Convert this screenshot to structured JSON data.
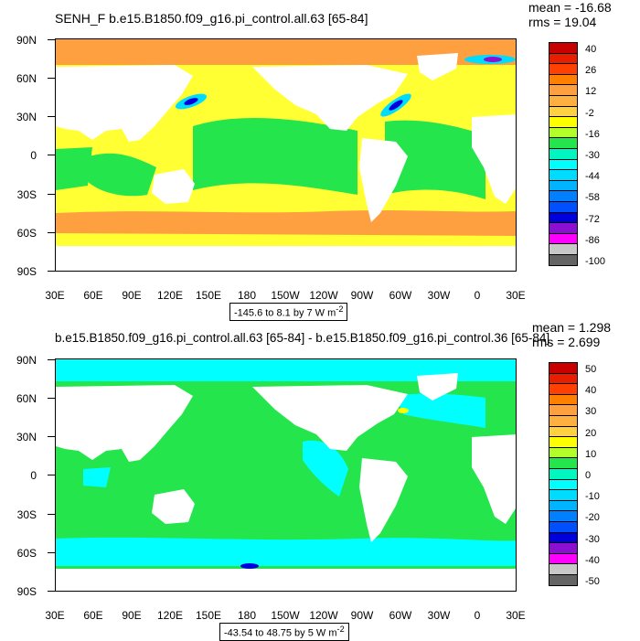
{
  "panels": [
    {
      "title": "SENH_F b.e15.B1850.f09_g16.pi_control.all.63 [65-84]",
      "mean_label": "mean = -16.68",
      "rms_label": "rms = 19.04",
      "range_label": "-145.6 to 8.1 by 7  W m",
      "range_exp": "-2",
      "lat_labels": [
        "90N",
        "60N",
        "30N",
        "0",
        "30S",
        "60S",
        "90S"
      ],
      "lon_labels": [
        "30E",
        "60E",
        "90E",
        "120E",
        "150E",
        "180",
        "150W",
        "120W",
        "90W",
        "60W",
        "30W",
        "0",
        "30E"
      ],
      "colorbar_labels": [
        "40",
        "26",
        "12",
        "-2",
        "-16",
        "-30",
        "-44",
        "-58",
        "-72",
        "-86",
        "-100"
      ],
      "colorbar_colors": [
        "#c80000",
        "#e81e00",
        "#ff4000",
        "#ff7f00",
        "#ffa040",
        "#ffb040",
        "#ffd040",
        "#ffff00",
        "#b2ff2a",
        "#24e64c",
        "#00f7c0",
        "#00ffff",
        "#00dcff",
        "#00b4ff",
        "#0080ff",
        "#0050ff",
        "#0000dc",
        "#8c10d2",
        "#ff00ff",
        "#c8c8c8",
        "#646464"
      ],
      "ocean_fill": "#ffff33"
    },
    {
      "title": "b.e15.B1850.f09_g16.pi_control.all.63 [65-84] - b.e15.B1850.f09_g16.pi_control.36 [65-84]",
      "mean_label": "mean = 1.298",
      "rms_label": "rms = 2.699",
      "range_label": "-43.54 to 48.75 by 5  W m",
      "range_exp": "-2",
      "lat_labels": [
        "90N",
        "60N",
        "30N",
        "0",
        "30S",
        "60S",
        "90S"
      ],
      "lon_labels": [
        "30E",
        "60E",
        "90E",
        "120E",
        "150E",
        "180",
        "150W",
        "120W",
        "90W",
        "60W",
        "30W",
        "0",
        "30E"
      ],
      "colorbar_labels": [
        "50",
        "40",
        "30",
        "20",
        "10",
        "0",
        "-10",
        "-20",
        "-30",
        "-40",
        "-50"
      ],
      "colorbar_colors": [
        "#c80000",
        "#e81e00",
        "#ff4000",
        "#ff7f00",
        "#ffa040",
        "#ffb040",
        "#ffd040",
        "#ffff00",
        "#b2ff2a",
        "#24e64c",
        "#00f7c0",
        "#00ffff",
        "#00dcff",
        "#00b4ff",
        "#0080ff",
        "#0050ff",
        "#0000dc",
        "#8c10d2",
        "#ff00ff",
        "#c8c8c8",
        "#646464"
      ],
      "ocean_fill": "#24e64c"
    }
  ]
}
